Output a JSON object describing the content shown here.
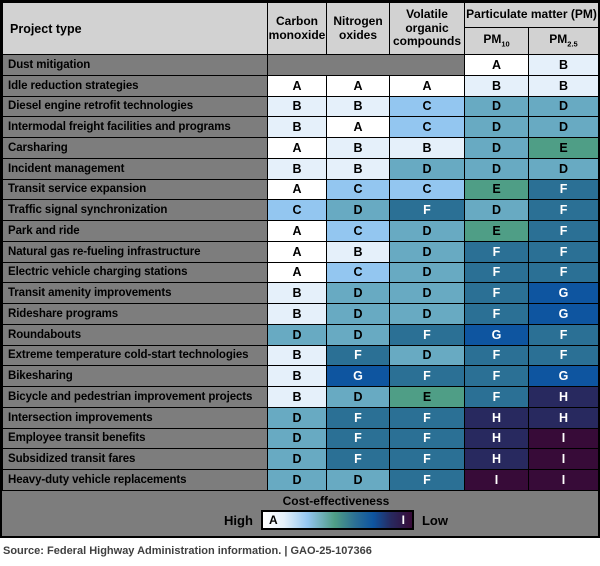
{
  "header": {
    "project_type": "Project type",
    "pollutant_columns": [
      "Carbon monoxide",
      "Nitrogen oxides",
      "Volatile organic compounds"
    ],
    "pm_group": "Particulate matter (PM)",
    "pm_columns": [
      {
        "base": "PM",
        "sub": "10"
      },
      {
        "base": "PM",
        "sub": "2.5"
      }
    ]
  },
  "chart_data": {
    "type": "heatmap",
    "columns": [
      "Carbon monoxide",
      "Nitrogen oxides",
      "Volatile organic compounds",
      "PM10",
      "PM2.5"
    ],
    "rows": [
      {
        "label": "Dust mitigation",
        "values": [
          null,
          null,
          null,
          "A",
          "B"
        ]
      },
      {
        "label": "Idle reduction strategies",
        "values": [
          "A",
          "A",
          "A",
          "B",
          "B"
        ]
      },
      {
        "label": "Diesel engine retrofit technologies",
        "values": [
          "B",
          "B",
          "C",
          "D",
          "D"
        ]
      },
      {
        "label": "Intermodal freight facilities and programs",
        "values": [
          "B",
          "A",
          "C",
          "D",
          "D"
        ]
      },
      {
        "label": "Carsharing",
        "values": [
          "A",
          "B",
          "B",
          "D",
          "E"
        ]
      },
      {
        "label": "Incident management",
        "values": [
          "B",
          "B",
          "D",
          "D",
          "D"
        ]
      },
      {
        "label": "Transit service expansion",
        "values": [
          "A",
          "C",
          "C",
          "E",
          "F"
        ]
      },
      {
        "label": "Traffic signal synchronization",
        "values": [
          "C",
          "D",
          "F",
          "D",
          "F"
        ]
      },
      {
        "label": "Park and ride",
        "values": [
          "A",
          "C",
          "D",
          "E",
          "F"
        ]
      },
      {
        "label": "Natural gas re-fueling infrastructure",
        "values": [
          "A",
          "B",
          "D",
          "F",
          "F"
        ]
      },
      {
        "label": "Electric vehicle charging stations",
        "values": [
          "A",
          "C",
          "D",
          "F",
          "F"
        ]
      },
      {
        "label": "Transit amenity improvements",
        "values": [
          "B",
          "D",
          "D",
          "F",
          "G"
        ]
      },
      {
        "label": "Rideshare programs",
        "values": [
          "B",
          "D",
          "D",
          "F",
          "G"
        ]
      },
      {
        "label": "Roundabouts",
        "values": [
          "D",
          "D",
          "F",
          "G",
          "F"
        ]
      },
      {
        "label": "Extreme temperature cold-start technologies",
        "values": [
          "B",
          "F",
          "D",
          "F",
          "F"
        ]
      },
      {
        "label": "Bikesharing",
        "values": [
          "B",
          "G",
          "F",
          "F",
          "G"
        ]
      },
      {
        "label": "Bicycle and pedestrian improvement projects",
        "values": [
          "B",
          "D",
          "E",
          "F",
          "H"
        ]
      },
      {
        "label": "Intersection improvements",
        "values": [
          "D",
          "F",
          "F",
          "H",
          "H"
        ]
      },
      {
        "label": "Employee transit benefits",
        "values": [
          "D",
          "F",
          "F",
          "H",
          "I"
        ]
      },
      {
        "label": "Subsidized transit fares",
        "values": [
          "D",
          "F",
          "F",
          "H",
          "I"
        ]
      },
      {
        "label": "Heavy-duty vehicle replacements",
        "values": [
          "D",
          "D",
          "F",
          "I",
          "I"
        ]
      }
    ],
    "scale": {
      "title": "Cost-effectiveness",
      "high_label": "High",
      "low_label": "Low",
      "best_grade": "A",
      "worst_grade": "I",
      "grade_colors": {
        "A": "#ffffff",
        "B": "#e5f0fa",
        "C": "#93c6f0",
        "D": "#68aac2",
        "E": "#4f9e86",
        "F": "#2b7095",
        "G": "#0e55a0",
        "H": "#28295f",
        "I": "#370b38"
      },
      "light_text_grades": [
        "F",
        "G",
        "H",
        "I"
      ],
      "background_gray": "#7d7d7d",
      "header_gray": "#d2d2d2"
    }
  },
  "legend": {
    "title": "Cost-effectiveness",
    "high": "High",
    "low": "Low",
    "bar_left": "A",
    "bar_right": "I"
  },
  "source": "Source: Federal Highway Administration information.  |  GAO-25-107366"
}
